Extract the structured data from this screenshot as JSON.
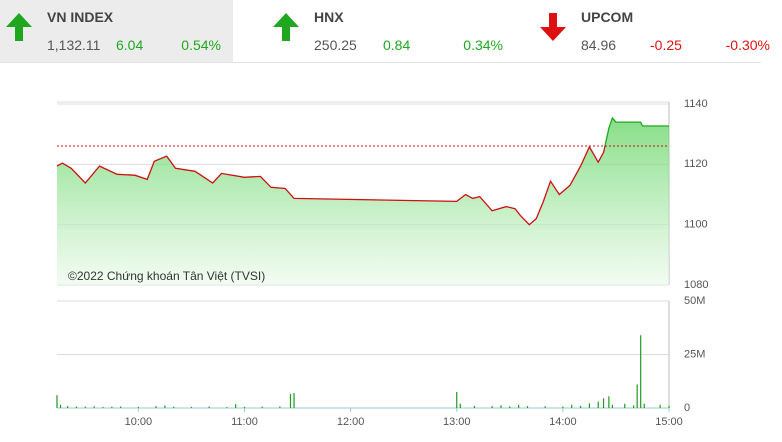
{
  "header": {
    "indices": [
      {
        "name": "VN INDEX",
        "value": "1,132.11",
        "change": "6.04",
        "percent": "0.54%",
        "direction": "up"
      },
      {
        "name": "HNX",
        "value": "250.25",
        "change": "0.84",
        "percent": "0.34%",
        "direction": "up"
      },
      {
        "name": "UPCOM",
        "value": "84.96",
        "change": "-0.25",
        "percent": "-0.30%",
        "direction": "down"
      }
    ]
  },
  "chart_data": [
    {
      "type": "line",
      "annotation": "©2022 Chứng khoán Tân Việt (TVSI)",
      "x": [
        554,
        557,
        562,
        570,
        578,
        588,
        598,
        605,
        609,
        616,
        621,
        632,
        642,
        647,
        660,
        669,
        675,
        683,
        688,
        780,
        785,
        789,
        793,
        800,
        808,
        813,
        816,
        821,
        825,
        829,
        833,
        838,
        844,
        850,
        855,
        860,
        863,
        866,
        868,
        870,
        884,
        885,
        900
      ],
      "values": [
        1119.4,
        1120.4,
        1118.7,
        1113.8,
        1119.4,
        1116.7,
        1116.4,
        1115,
        1121,
        1122.7,
        1118.7,
        1117.7,
        1113.8,
        1117,
        1115.7,
        1116,
        1112.4,
        1112,
        1108.7,
        1107.7,
        1110,
        1108.7,
        1109.3,
        1104.6,
        1106,
        1105.3,
        1103,
        1100,
        1102,
        1107.7,
        1114.4,
        1110,
        1113,
        1119.4,
        1125.8,
        1120.7,
        1124,
        1132,
        1135.4,
        1134,
        1134,
        1132.7,
        1132.7
      ],
      "xlim": [
        554,
        900
      ],
      "ylim": [
        1080,
        1140
      ],
      "yticks": [
        1080,
        1100,
        1120,
        1140
      ],
      "reference": 1126.07,
      "up_color": "#1fa81f",
      "down_color": "#cc1111",
      "grid": true
    },
    {
      "type": "bar",
      "x": [
        554,
        556,
        560,
        565,
        570,
        575,
        580,
        585,
        590,
        600,
        610,
        615,
        620,
        630,
        640,
        650,
        655,
        660,
        670,
        680,
        686,
        688,
        780,
        782,
        790,
        800,
        805,
        810,
        815,
        820,
        830,
        840,
        845,
        850,
        855,
        860,
        863,
        866,
        868,
        875,
        880,
        882,
        884,
        886,
        895,
        900
      ],
      "values": [
        6000000,
        1500000,
        900000,
        700000,
        600000,
        800000,
        500000,
        600000,
        700000,
        500000,
        900000,
        1200000,
        600000,
        500000,
        700000,
        400000,
        1800000,
        500000,
        600000,
        700000,
        6500000,
        7000000,
        7500000,
        2000000,
        1000000,
        900000,
        1300000,
        800000,
        1500000,
        900000,
        800000,
        700000,
        1500000,
        1000000,
        2200000,
        3000000,
        4500000,
        5500000,
        1500000,
        2000000,
        1200000,
        11000000,
        34000000,
        2000000,
        1500000,
        1000000
      ],
      "xlim": [
        554,
        900
      ],
      "ylim": [
        0,
        50000000
      ],
      "yticks": [
        0,
        {
          "value": 25000000,
          "label": "25M"
        },
        {
          "value": 50000000,
          "label": "50M"
        }
      ],
      "xticks": [
        {
          "value": 600,
          "label": "10:00"
        },
        {
          "value": 660,
          "label": "11:00"
        },
        {
          "value": 720,
          "label": "12:00"
        },
        {
          "value": 780,
          "label": "13:00"
        },
        {
          "value": 840,
          "label": "14:00"
        },
        {
          "value": 900,
          "label": "15:00"
        }
      ],
      "color": "#1f9a1f",
      "grid": true
    }
  ]
}
